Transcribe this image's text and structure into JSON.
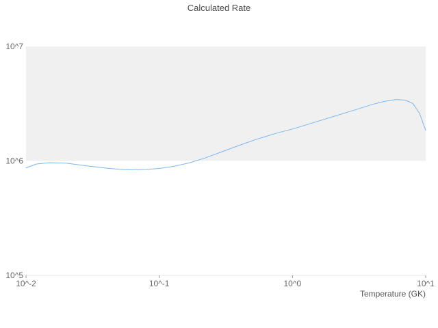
{
  "chart_data": {
    "type": "line",
    "title": "Calculated Rate",
    "xlabel": "Temperature (GK)",
    "ylabel": "",
    "x_scale": "log",
    "y_scale": "log",
    "xlim": [
      0.01,
      10
    ],
    "ylim": [
      100000,
      10000000
    ],
    "grid": false,
    "legend": false,
    "x_ticks": [
      {
        "value": 0.01,
        "label": "10^-2"
      },
      {
        "value": 0.1,
        "label": "10^-1"
      },
      {
        "value": 1,
        "label": "10^0"
      },
      {
        "value": 10,
        "label": "10^1"
      }
    ],
    "y_ticks": [
      {
        "value": 100000,
        "label": "10^5"
      },
      {
        "value": 1000000,
        "label": "10^6"
      },
      {
        "value": 10000000,
        "label": "10^7"
      }
    ],
    "band": {
      "from": 1000000,
      "to": 10000000,
      "color": "#f0f0f0"
    },
    "line_color": "#7cb5ec",
    "axis_line_color": "#e6e6e6",
    "tick_mark_color": "#999999",
    "series": [
      {
        "name": "Calculated Rate",
        "x": [
          0.01,
          0.012,
          0.015,
          0.02,
          0.025,
          0.03,
          0.04,
          0.05,
          0.06,
          0.08,
          0.1,
          0.13,
          0.17,
          0.22,
          0.3,
          0.4,
          0.55,
          0.75,
          1.0,
          1.4,
          2.0,
          2.8,
          4.0,
          5.0,
          6.0,
          7.0,
          8.0,
          9.0,
          10.0
        ],
        "y": [
          870000,
          940000,
          965000,
          955000,
          925000,
          900000,
          865000,
          845000,
          838000,
          842000,
          860000,
          900000,
          965000,
          1060000,
          1210000,
          1370000,
          1560000,
          1740000,
          1900000,
          2140000,
          2430000,
          2740000,
          3120000,
          3330000,
          3440000,
          3400000,
          3180000,
          2600000,
          1850000
        ]
      }
    ]
  }
}
